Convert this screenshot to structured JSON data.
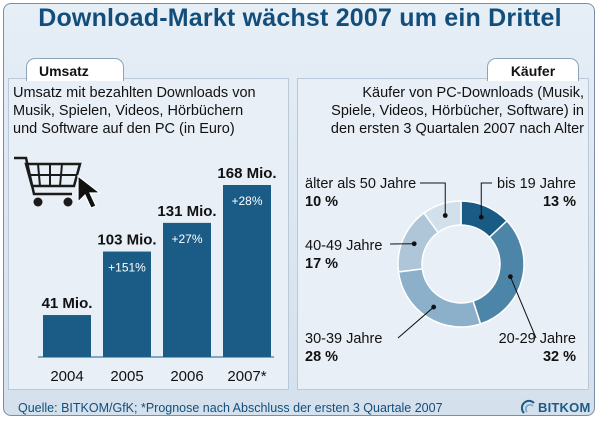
{
  "title": "Download-Markt wächst 2007 um ein Drittel",
  "left_panel": {
    "tab": "Umsatz",
    "description": [
      "Umsatz mit bezahlten Downloads von",
      "Musik, Spielen, Videos, Hörbüchern",
      "und Software auf den PC (in Euro)"
    ],
    "cart_icon": "shopping-cart-icon",
    "cursor_icon": "mouse-cursor-icon"
  },
  "right_panel": {
    "tab": "Käufer",
    "description": [
      "Käufer von PC-Downloads (Musik,",
      "Spiele, Videos, Hörbücher, Software) in",
      "den ersten 3 Quartalen 2007 nach Alter"
    ]
  },
  "footer": "Quelle: BITKOM/GfK; *Prognose nach Abschluss der ersten 3 Quartale 2007",
  "logo": "BITKOM",
  "colors": {
    "bar": "#1b5c86",
    "title": "#134e7b",
    "donut": [
      "#1a5b86",
      "#4c85a8",
      "#8cb0c9",
      "#aec6d8",
      "#d2e0eb"
    ]
  },
  "chart_data": [
    {
      "type": "bar",
      "categories": [
        "2004",
        "2005",
        "2006",
        "2007*"
      ],
      "values": [
        41,
        103,
        131,
        168
      ],
      "value_labels": [
        "41 Mio.",
        "103 Mio.",
        "131 Mio.",
        "168 Mio."
      ],
      "growth_labels": [
        "",
        "+151%",
        "+27%",
        "+28%"
      ],
      "ylim": [
        0,
        168
      ]
    },
    {
      "type": "pie",
      "segments": [
        {
          "label": "bis 19 Jahre",
          "value": 13,
          "value_label": "13 %"
        },
        {
          "label": "20-29 Jahre",
          "value": 32,
          "value_label": "32 %"
        },
        {
          "label": "30-39 Jahre",
          "value": 28,
          "value_label": "28 %"
        },
        {
          "label": "40-49 Jahre",
          "value": 17,
          "value_label": "17 %"
        },
        {
          "label": "älter als 50 Jahre",
          "value": 10,
          "value_label": "10 %"
        }
      ]
    }
  ]
}
